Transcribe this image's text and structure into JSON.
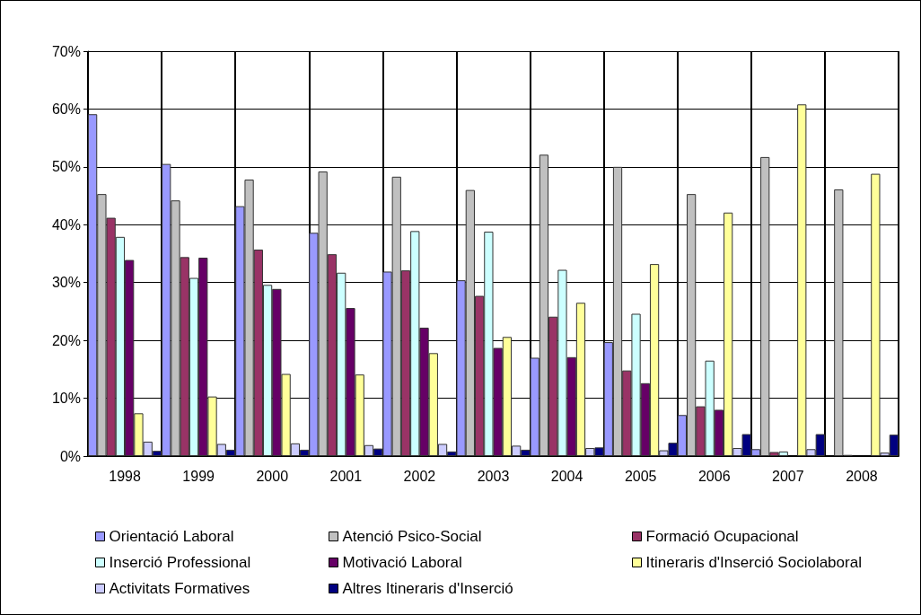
{
  "chart_data": {
    "type": "bar",
    "categories": [
      "1998",
      "1999",
      "2000",
      "2001",
      "2002",
      "2003",
      "2004",
      "2005",
      "2006",
      "2007",
      "2008"
    ],
    "series": [
      {
        "name": "Orientació Laboral",
        "color": "#9999ff",
        "values": [
          59.1,
          50.5,
          43.2,
          38.6,
          31.9,
          30.4,
          17.0,
          19.7,
          7.1,
          1.2,
          0
        ]
      },
      {
        "name": "Atenció Psico-Social",
        "color": "#c0c0c0",
        "values": [
          45.3,
          44.2,
          47.8,
          49.2,
          48.3,
          46.0,
          52.1,
          50.0,
          45.3,
          51.7,
          46.1
        ]
      },
      {
        "name": "Formació Ocupacional",
        "color": "#993366",
        "values": [
          41.2,
          34.4,
          35.7,
          34.9,
          32.1,
          27.7,
          24.1,
          14.8,
          8.6,
          0.7,
          0.2
        ]
      },
      {
        "name": "Inserció Professional",
        "color": "#ccffff",
        "values": [
          37.9,
          30.8,
          29.6,
          31.7,
          38.9,
          38.8,
          32.2,
          24.6,
          16.5,
          0.8,
          0
        ]
      },
      {
        "name": "Motivació Laboral",
        "color": "#660066",
        "values": [
          33.9,
          34.3,
          28.9,
          25.6,
          22.2,
          18.7,
          17.1,
          12.6,
          8.0,
          0,
          0
        ]
      },
      {
        "name": "Itineraris d'Inserció Sociolaboral",
        "color": "#ffff99",
        "values": [
          7.4,
          10.3,
          14.2,
          14.1,
          17.8,
          20.6,
          26.5,
          33.2,
          42.1,
          60.8,
          48.8
        ]
      },
      {
        "name": "Activitats Formatives",
        "color": "#ccccff",
        "values": [
          2.5,
          2.1,
          2.2,
          1.9,
          2.1,
          1.8,
          1.4,
          1.0,
          1.4,
          1.2,
          0.6
        ]
      },
      {
        "name": "Altres Itineraris d'Inserció",
        "color": "#000080",
        "values": [
          0.9,
          1.1,
          1.1,
          1.3,
          0.8,
          1.1,
          1.5,
          2.3,
          3.8,
          3.8,
          3.7
        ]
      }
    ],
    "ylim": [
      0,
      70
    ],
    "yticks": [
      {
        "value": 0,
        "label": "0%"
      },
      {
        "value": 10,
        "label": "10%"
      },
      {
        "value": 20,
        "label": "20%"
      },
      {
        "value": 30,
        "label": "30%"
      },
      {
        "value": 40,
        "label": "40%"
      },
      {
        "value": 50,
        "label": "50%"
      },
      {
        "value": 60,
        "label": "60%"
      },
      {
        "value": 70,
        "label": "70%"
      }
    ],
    "grid": true,
    "legend": "bottom"
  }
}
